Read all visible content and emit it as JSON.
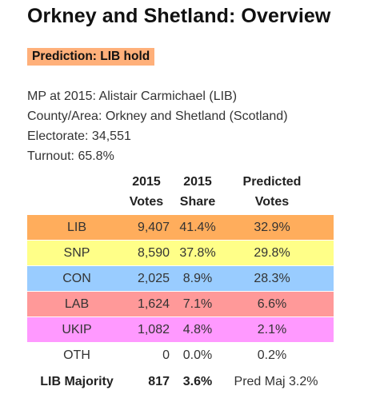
{
  "title": "Orkney and Shetland: Overview",
  "prediction": {
    "text": "Prediction: LIB hold",
    "color": "#ffb07a"
  },
  "info": {
    "mp": "MP at 2015: Alistair Carmichael  (LIB)",
    "area": "County/Area: Orkney and Shetland (Scotland)",
    "electorate": "Electorate: 34,551",
    "turnout": "Turnout: 65.8%"
  },
  "table": {
    "headers": {
      "votes_line1": "2015",
      "votes_line2": "Votes",
      "share_line1": "2015",
      "share_line2": "Share",
      "pred_line1": "Predicted",
      "pred_line2": "Votes"
    },
    "rows": [
      {
        "party": "LIB",
        "votes": "9,407",
        "share": "41.4%",
        "pred": "32.9%",
        "color": "#ffad5c"
      },
      {
        "party": "SNP",
        "votes": "8,590",
        "share": "37.8%",
        "pred": "29.8%",
        "color": "#ffff88"
      },
      {
        "party": "CON",
        "votes": "2,025",
        "share": "8.9%",
        "pred": "28.3%",
        "color": "#99ccff"
      },
      {
        "party": "LAB",
        "votes": "1,624",
        "share": "7.1%",
        "pred": "6.6%",
        "color": "#ff9999"
      },
      {
        "party": "UKIP",
        "votes": "1,082",
        "share": "4.8%",
        "pred": "2.1%",
        "color": "#ff99ff"
      },
      {
        "party": "OTH",
        "votes": "0",
        "share": "0.0%",
        "pred": "0.2%",
        "color": "#ffffff"
      }
    ],
    "majority": {
      "label": "LIB Majority",
      "votes": "817",
      "share": "3.6%",
      "pred": "Pred Maj 3.2%"
    }
  }
}
